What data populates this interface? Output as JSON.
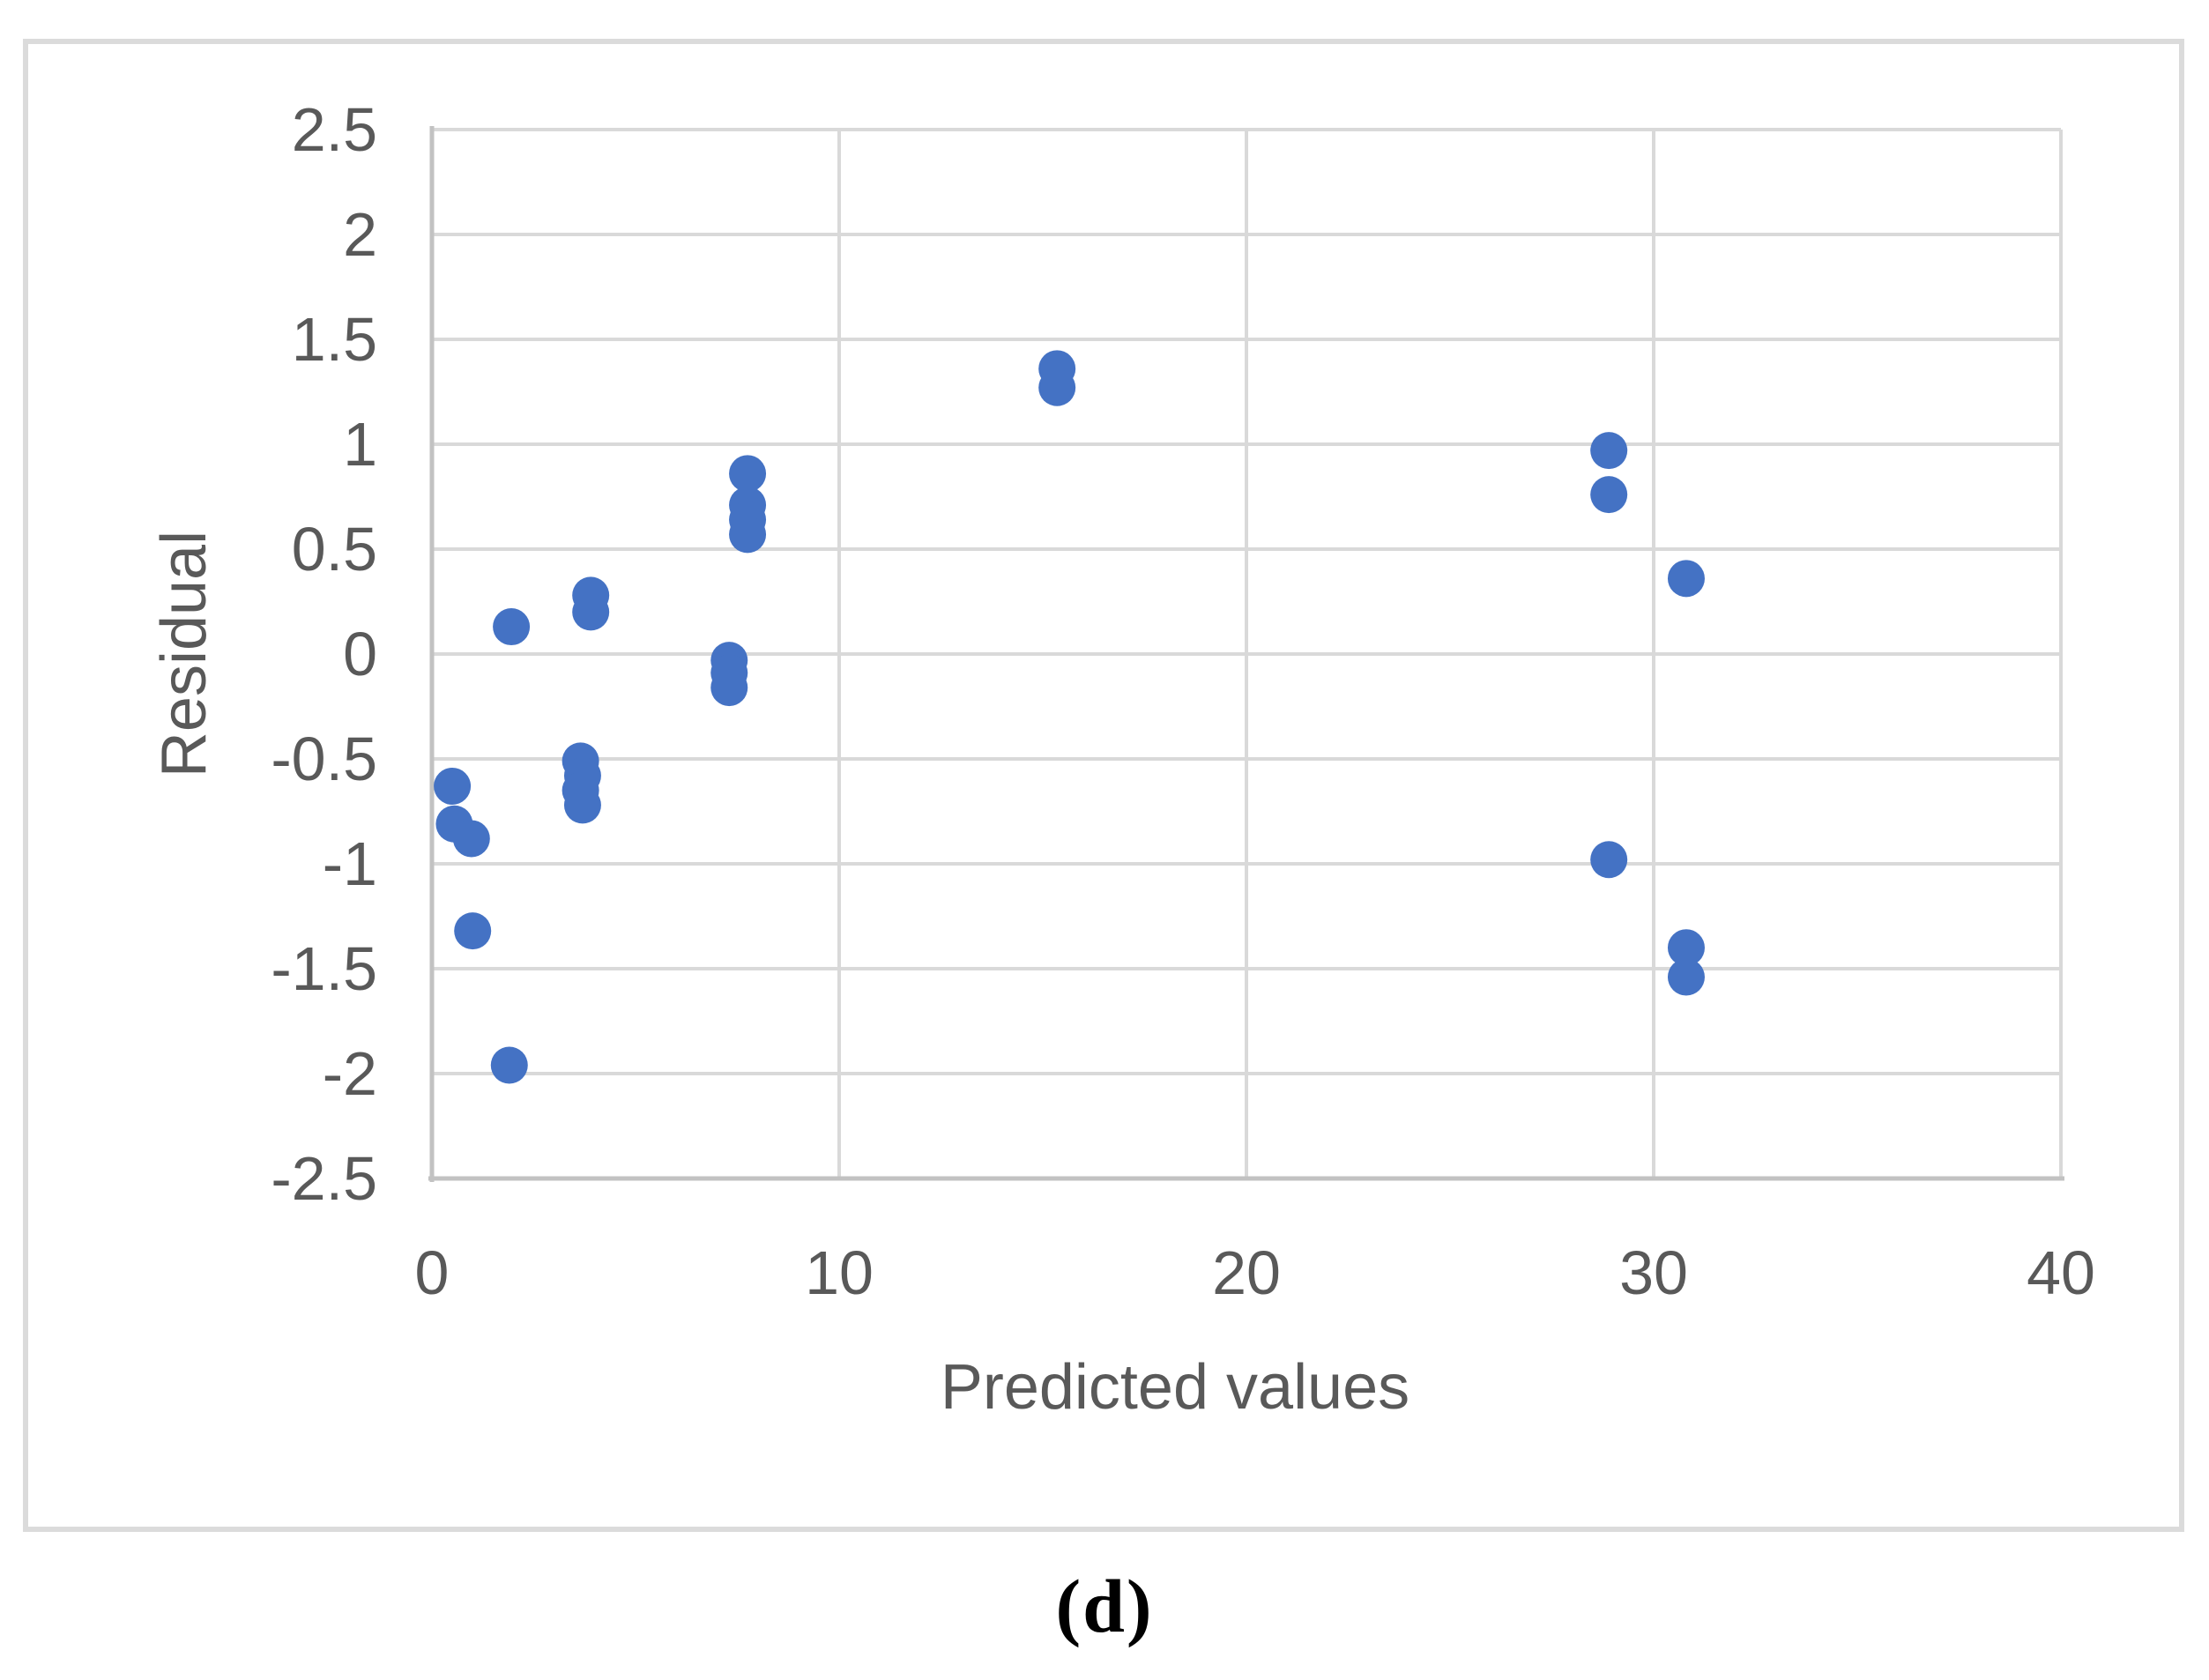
{
  "figure": {
    "caption": "(d)",
    "border_color": "#dbdbdb",
    "background": "#ffffff"
  },
  "chart_data": {
    "type": "scatter",
    "title": "",
    "xlabel": "Predicted values",
    "ylabel": "Residual",
    "xlim": [
      0,
      40
    ],
    "ylim": [
      -2.5,
      2.5
    ],
    "grid": true,
    "legend": "none",
    "xticks": {
      "values": [
        0,
        10,
        20,
        30,
        40
      ],
      "labels": [
        "0",
        "10",
        "20",
        "30",
        "40"
      ]
    },
    "yticks": {
      "values": [
        2.5,
        2,
        1.5,
        1,
        0.5,
        0,
        -0.5,
        -1,
        -1.5,
        -2,
        -2.5
      ],
      "labels": [
        "2.5",
        "2",
        "1.5",
        "1",
        "0.5",
        "0",
        "-0.5",
        "-1",
        "-1.5",
        "-2",
        "-2.5"
      ]
    },
    "marker_color": "#4472c4",
    "gridline_color": "#d9d9d9",
    "axis_color": "#c2c2c2",
    "tick_label_color": "#595959",
    "points": [
      [
        0.5,
        -0.63
      ],
      [
        0.55,
        -0.81
      ],
      [
        0.97,
        -0.88
      ],
      [
        1.0,
        -1.32
      ],
      [
        1.9,
        -1.96
      ],
      [
        1.95,
        0.13
      ],
      [
        3.9,
        0.28
      ],
      [
        3.9,
        0.2
      ],
      [
        3.65,
        -0.51
      ],
      [
        3.7,
        -0.58
      ],
      [
        3.65,
        -0.65
      ],
      [
        3.7,
        -0.72
      ],
      [
        7.3,
        -0.03
      ],
      [
        7.3,
        -0.09
      ],
      [
        7.3,
        -0.16
      ],
      [
        7.75,
        0.86
      ],
      [
        7.75,
        0.71
      ],
      [
        7.75,
        0.64
      ],
      [
        7.75,
        0.57
      ],
      [
        15.35,
        1.36
      ],
      [
        15.35,
        1.27
      ],
      [
        28.9,
        0.97
      ],
      [
        28.9,
        0.76
      ],
      [
        28.9,
        -0.98
      ],
      [
        30.8,
        0.36
      ],
      [
        30.8,
        -1.4
      ],
      [
        30.8,
        -1.54
      ]
    ]
  }
}
